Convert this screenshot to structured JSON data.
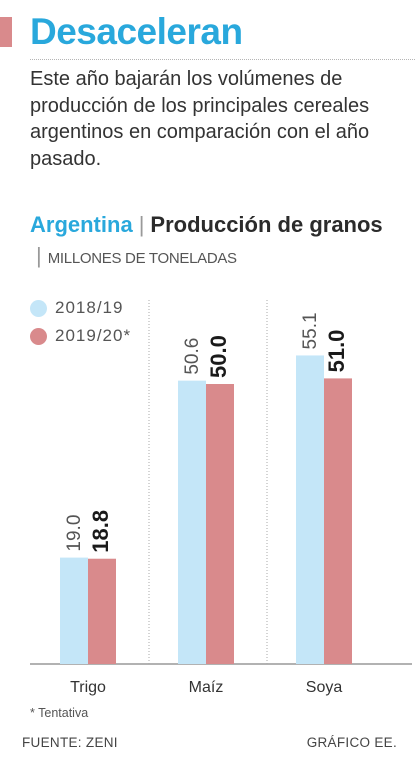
{
  "header": {
    "title": "Desaceleran",
    "subtitle": "Este año bajarán los volúmenes de producción de los principales cereales argentinos en comparación con el año pasado."
  },
  "chart_heading": {
    "country": "Argentina",
    "separator": "|",
    "title": "Producción de granos",
    "units": "MILLONES DE TONELADAS"
  },
  "colors": {
    "accent": "#d98a8c",
    "title_blue": "#29a8dc",
    "series_2018": "#c4e6f8",
    "series_2019": "#d98a8c"
  },
  "chart_data": {
    "type": "bar",
    "categories": [
      "Trigo",
      "Maíz",
      "Soya"
    ],
    "series": [
      {
        "name": "2018/19",
        "values": [
          19.0,
          50.6,
          55.1
        ]
      },
      {
        "name": "2019/20*",
        "values": [
          18.8,
          50.0,
          51.0
        ]
      }
    ],
    "value_labels": [
      [
        "19.0",
        "50.6",
        "55.1"
      ],
      [
        "18.8",
        "50.0",
        "51.0"
      ]
    ],
    "ylim": [
      0,
      60
    ],
    "grid": false,
    "legend": "top-left"
  },
  "footer": {
    "note": "* Tentativa",
    "source": "FUENTE: ZENI",
    "credit": "GRÁFICO EE."
  }
}
